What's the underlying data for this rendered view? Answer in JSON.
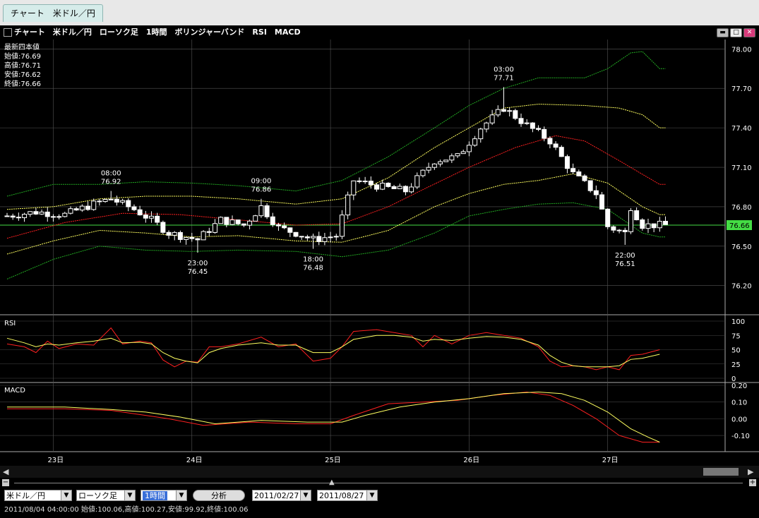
{
  "tab": {
    "label": "チャート　米ドル／円"
  },
  "title": "チャート　米ドル／円　ローソク足　1時間　ボリンジャーバンド　RSI　MACD",
  "window_buttons": [
    "minimize-icon",
    "maximize-icon",
    "close-icon"
  ],
  "colors": {
    "up": "#ffffff",
    "down": "#ffffff",
    "sma": "#ff2020",
    "band1": "#ffff60",
    "band2": "#22aa22",
    "rsi_a": "#ff2020",
    "rsi_b": "#ffff60",
    "macd": "#ff2020",
    "signal": "#ffff60",
    "current": "#44dd44"
  },
  "latest": {
    "heading": "最新四本値",
    "open": "始値:76.69",
    "high": "高値:76.71",
    "low": "安値:76.62",
    "close": "終値:76.66"
  },
  "chart_data": [
    {
      "type": "line",
      "title": "",
      "subtitle": "ローソク足 / ボリンジャーバンド",
      "y_ticks": [
        "78.00",
        "77.70",
        "77.40",
        "77.10",
        "76.80",
        "76.50",
        "76.20"
      ],
      "ylim": [
        76.0,
        78.05
      ],
      "x_ticks": [
        "23日",
        "24日",
        "25日",
        "26日",
        "27日"
      ],
      "x_tick_index": [
        8,
        32,
        56,
        80,
        104
      ],
      "n_bars": 115,
      "current_price": "76.66",
      "current_value": 76.66,
      "annotations": [
        {
          "time": "08:00",
          "price": "76.92",
          "index": 18,
          "value": 76.92,
          "side": "high"
        },
        {
          "time": "23:00",
          "price": "76.45",
          "index": 33,
          "value": 76.45,
          "side": "low"
        },
        {
          "time": "09:00",
          "price": "76.86",
          "index": 44,
          "value": 76.86,
          "side": "high"
        },
        {
          "time": "18:00",
          "price": "76.48",
          "index": 53,
          "value": 76.48,
          "side": "low"
        },
        {
          "time": "03:00",
          "price": "77.71",
          "index": 86,
          "value": 77.71,
          "side": "high"
        },
        {
          "time": "22:00",
          "price": "76.51",
          "index": 107,
          "value": 76.51,
          "side": "low"
        }
      ],
      "candle_keys": [
        {
          "i": 0,
          "c": 76.73
        },
        {
          "i": 5,
          "c": 76.76
        },
        {
          "i": 10,
          "c": 76.74
        },
        {
          "i": 15,
          "c": 76.82
        },
        {
          "i": 18,
          "c": 76.86
        },
        {
          "i": 22,
          "c": 76.78
        },
        {
          "i": 25,
          "c": 76.7
        },
        {
          "i": 28,
          "c": 76.6
        },
        {
          "i": 33,
          "c": 76.55
        },
        {
          "i": 37,
          "c": 76.7
        },
        {
          "i": 41,
          "c": 76.66
        },
        {
          "i": 44,
          "c": 76.8
        },
        {
          "i": 47,
          "c": 76.64
        },
        {
          "i": 50,
          "c": 76.6
        },
        {
          "i": 53,
          "c": 76.55
        },
        {
          "i": 57,
          "c": 76.58
        },
        {
          "i": 60,
          "c": 77.0
        },
        {
          "i": 65,
          "c": 76.95
        },
        {
          "i": 69,
          "c": 76.92
        },
        {
          "i": 74,
          "c": 77.15
        },
        {
          "i": 78,
          "c": 77.18
        },
        {
          "i": 82,
          "c": 77.4
        },
        {
          "i": 86,
          "c": 77.55
        },
        {
          "i": 90,
          "c": 77.42
        },
        {
          "i": 94,
          "c": 77.3
        },
        {
          "i": 98,
          "c": 77.05
        },
        {
          "i": 102,
          "c": 76.9
        },
        {
          "i": 104,
          "c": 76.65
        },
        {
          "i": 107,
          "c": 76.6
        },
        {
          "i": 108,
          "c": 76.8
        },
        {
          "i": 110,
          "c": 76.66
        },
        {
          "i": 114,
          "c": 76.66
        }
      ],
      "sma": [
        [
          0,
          76.56
        ],
        [
          10,
          76.68
        ],
        [
          20,
          76.75
        ],
        [
          30,
          76.74
        ],
        [
          40,
          76.7
        ],
        [
          50,
          76.66
        ],
        [
          58,
          76.67
        ],
        [
          66,
          76.8
        ],
        [
          72,
          76.93
        ],
        [
          80,
          77.1
        ],
        [
          88,
          77.25
        ],
        [
          95,
          77.34
        ],
        [
          100,
          77.3
        ],
        [
          106,
          77.15
        ],
        [
          113,
          76.97
        ]
      ],
      "band1_upper": [
        [
          0,
          76.78
        ],
        [
          8,
          76.8
        ],
        [
          16,
          76.86
        ],
        [
          24,
          76.88
        ],
        [
          32,
          76.88
        ],
        [
          40,
          76.86
        ],
        [
          50,
          76.82
        ],
        [
          58,
          76.86
        ],
        [
          66,
          77.02
        ],
        [
          74,
          77.25
        ],
        [
          80,
          77.4
        ],
        [
          86,
          77.55
        ],
        [
          92,
          77.58
        ],
        [
          100,
          77.57
        ],
        [
          106,
          77.55
        ],
        [
          110,
          77.5
        ],
        [
          113,
          77.4
        ]
      ],
      "band1_lower": [
        [
          0,
          76.44
        ],
        [
          8,
          76.54
        ],
        [
          16,
          76.62
        ],
        [
          24,
          76.6
        ],
        [
          32,
          76.57
        ],
        [
          40,
          76.58
        ],
        [
          50,
          76.54
        ],
        [
          58,
          76.53
        ],
        [
          66,
          76.62
        ],
        [
          74,
          76.8
        ],
        [
          80,
          76.9
        ],
        [
          86,
          76.97
        ],
        [
          92,
          77.0
        ],
        [
          98,
          77.05
        ],
        [
          104,
          76.98
        ],
        [
          110,
          76.8
        ],
        [
          113,
          76.74
        ]
      ],
      "band2_upper": [
        [
          0,
          76.88
        ],
        [
          8,
          76.97
        ],
        [
          16,
          76.97
        ],
        [
          24,
          76.99
        ],
        [
          32,
          76.98
        ],
        [
          40,
          76.96
        ],
        [
          50,
          76.92
        ],
        [
          58,
          77.0
        ],
        [
          66,
          77.18
        ],
        [
          74,
          77.4
        ],
        [
          80,
          77.57
        ],
        [
          86,
          77.7
        ],
        [
          92,
          77.78
        ],
        [
          100,
          77.78
        ],
        [
          104,
          77.85
        ],
        [
          108,
          77.97
        ],
        [
          110,
          77.98
        ],
        [
          113,
          77.85
        ]
      ],
      "band2_lower": [
        [
          0,
          76.25
        ],
        [
          8,
          76.4
        ],
        [
          16,
          76.5
        ],
        [
          24,
          76.47
        ],
        [
          32,
          76.46
        ],
        [
          40,
          76.47
        ],
        [
          50,
          76.46
        ],
        [
          58,
          76.42
        ],
        [
          66,
          76.47
        ],
        [
          74,
          76.6
        ],
        [
          80,
          76.73
        ],
        [
          86,
          76.78
        ],
        [
          92,
          76.82
        ],
        [
          98,
          76.83
        ],
        [
          104,
          76.78
        ],
        [
          110,
          76.6
        ],
        [
          113,
          76.57
        ]
      ]
    },
    {
      "type": "line",
      "title": "RSI",
      "y_ticks": [
        "100",
        "75",
        "50",
        "25",
        "0"
      ],
      "ylim": [
        0,
        100
      ],
      "series": [
        {
          "name": "",
          "color": "red",
          "points": [
            [
              0,
              60
            ],
            [
              3,
              55
            ],
            [
              5,
              45
            ],
            [
              7,
              65
            ],
            [
              9,
              52
            ],
            [
              12,
              60
            ],
            [
              15,
              58
            ],
            [
              18,
              88
            ],
            [
              20,
              60
            ],
            [
              23,
              65
            ],
            [
              25,
              62
            ],
            [
              27,
              32
            ],
            [
              29,
              20
            ],
            [
              31,
              30
            ],
            [
              33,
              28
            ],
            [
              35,
              55
            ],
            [
              37,
              55
            ],
            [
              40,
              60
            ],
            [
              44,
              72
            ],
            [
              47,
              55
            ],
            [
              50,
              60
            ],
            [
              53,
              30
            ],
            [
              56,
              35
            ],
            [
              58,
              55
            ],
            [
              60,
              82
            ],
            [
              64,
              85
            ],
            [
              67,
              80
            ],
            [
              70,
              75
            ],
            [
              72,
              55
            ],
            [
              74,
              75
            ],
            [
              77,
              60
            ],
            [
              80,
              75
            ],
            [
              83,
              80
            ],
            [
              86,
              75
            ],
            [
              89,
              70
            ],
            [
              92,
              55
            ],
            [
              94,
              30
            ],
            [
              96,
              20
            ],
            [
              98,
              22
            ],
            [
              100,
              20
            ],
            [
              102,
              15
            ],
            [
              104,
              20
            ],
            [
              106,
              15
            ],
            [
              108,
              40
            ],
            [
              110,
              42
            ],
            [
              113,
              50
            ]
          ]
        },
        {
          "name": "",
          "color": "yellow",
          "points": [
            [
              0,
              70
            ],
            [
              3,
              62
            ],
            [
              5,
              55
            ],
            [
              7,
              60
            ],
            [
              9,
              58
            ],
            [
              12,
              62
            ],
            [
              15,
              65
            ],
            [
              18,
              70
            ],
            [
              20,
              62
            ],
            [
              23,
              63
            ],
            [
              25,
              60
            ],
            [
              27,
              45
            ],
            [
              29,
              35
            ],
            [
              31,
              30
            ],
            [
              33,
              27
            ],
            [
              35,
              45
            ],
            [
              37,
              52
            ],
            [
              40,
              58
            ],
            [
              44,
              62
            ],
            [
              47,
              58
            ],
            [
              50,
              58
            ],
            [
              53,
              45
            ],
            [
              56,
              45
            ],
            [
              58,
              55
            ],
            [
              60,
              68
            ],
            [
              64,
              75
            ],
            [
              67,
              75
            ],
            [
              70,
              72
            ],
            [
              72,
              65
            ],
            [
              74,
              68
            ],
            [
              77,
              66
            ],
            [
              80,
              70
            ],
            [
              83,
              73
            ],
            [
              86,
              72
            ],
            [
              89,
              68
            ],
            [
              92,
              58
            ],
            [
              94,
              40
            ],
            [
              96,
              28
            ],
            [
              98,
              22
            ],
            [
              100,
              20
            ],
            [
              102,
              20
            ],
            [
              104,
              20
            ],
            [
              106,
              22
            ],
            [
              108,
              33
            ],
            [
              110,
              35
            ],
            [
              113,
              42
            ]
          ]
        }
      ]
    },
    {
      "type": "line",
      "title": "MACD",
      "y_ticks": [
        "0.20",
        "0.10",
        "0.00",
        "-0.10"
      ],
      "ylim": [
        -0.18,
        0.2
      ],
      "series": [
        {
          "name": "",
          "color": "red",
          "points": [
            [
              0,
              0.06
            ],
            [
              10,
              0.06
            ],
            [
              18,
              0.05
            ],
            [
              22,
              0.03
            ],
            [
              28,
              0.0
            ],
            [
              34,
              -0.04
            ],
            [
              42,
              -0.02
            ],
            [
              50,
              -0.03
            ],
            [
              56,
              -0.03
            ],
            [
              60,
              0.02
            ],
            [
              66,
              0.09
            ],
            [
              72,
              0.1
            ],
            [
              78,
              0.11
            ],
            [
              84,
              0.14
            ],
            [
              90,
              0.16
            ],
            [
              94,
              0.14
            ],
            [
              98,
              0.08
            ],
            [
              102,
              0.0
            ],
            [
              106,
              -0.1
            ],
            [
              110,
              -0.14
            ],
            [
              113,
              -0.14
            ]
          ]
        },
        {
          "name": "",
          "color": "yellow",
          "points": [
            [
              0,
              0.07
            ],
            [
              10,
              0.07
            ],
            [
              18,
              0.055
            ],
            [
              24,
              0.04
            ],
            [
              30,
              0.01
            ],
            [
              36,
              -0.03
            ],
            [
              44,
              -0.01
            ],
            [
              52,
              -0.02
            ],
            [
              58,
              -0.02
            ],
            [
              62,
              0.02
            ],
            [
              68,
              0.07
            ],
            [
              74,
              0.1
            ],
            [
              80,
              0.12
            ],
            [
              86,
              0.15
            ],
            [
              92,
              0.16
            ],
            [
              96,
              0.15
            ],
            [
              100,
              0.11
            ],
            [
              104,
              0.04
            ],
            [
              108,
              -0.06
            ],
            [
              111,
              -0.11
            ],
            [
              113,
              -0.14
            ]
          ]
        }
      ]
    }
  ],
  "controls": {
    "symbol": "米ドル／円",
    "chart_type": "ローソク足",
    "period": "1時間",
    "analyze": "分析",
    "date_from": "2011/02/27",
    "date_to": "2011/08/27"
  },
  "status": "2011/08/04 04:00:00 始値:100.06,高値:100.27,安値:99.92,終値:100.06"
}
